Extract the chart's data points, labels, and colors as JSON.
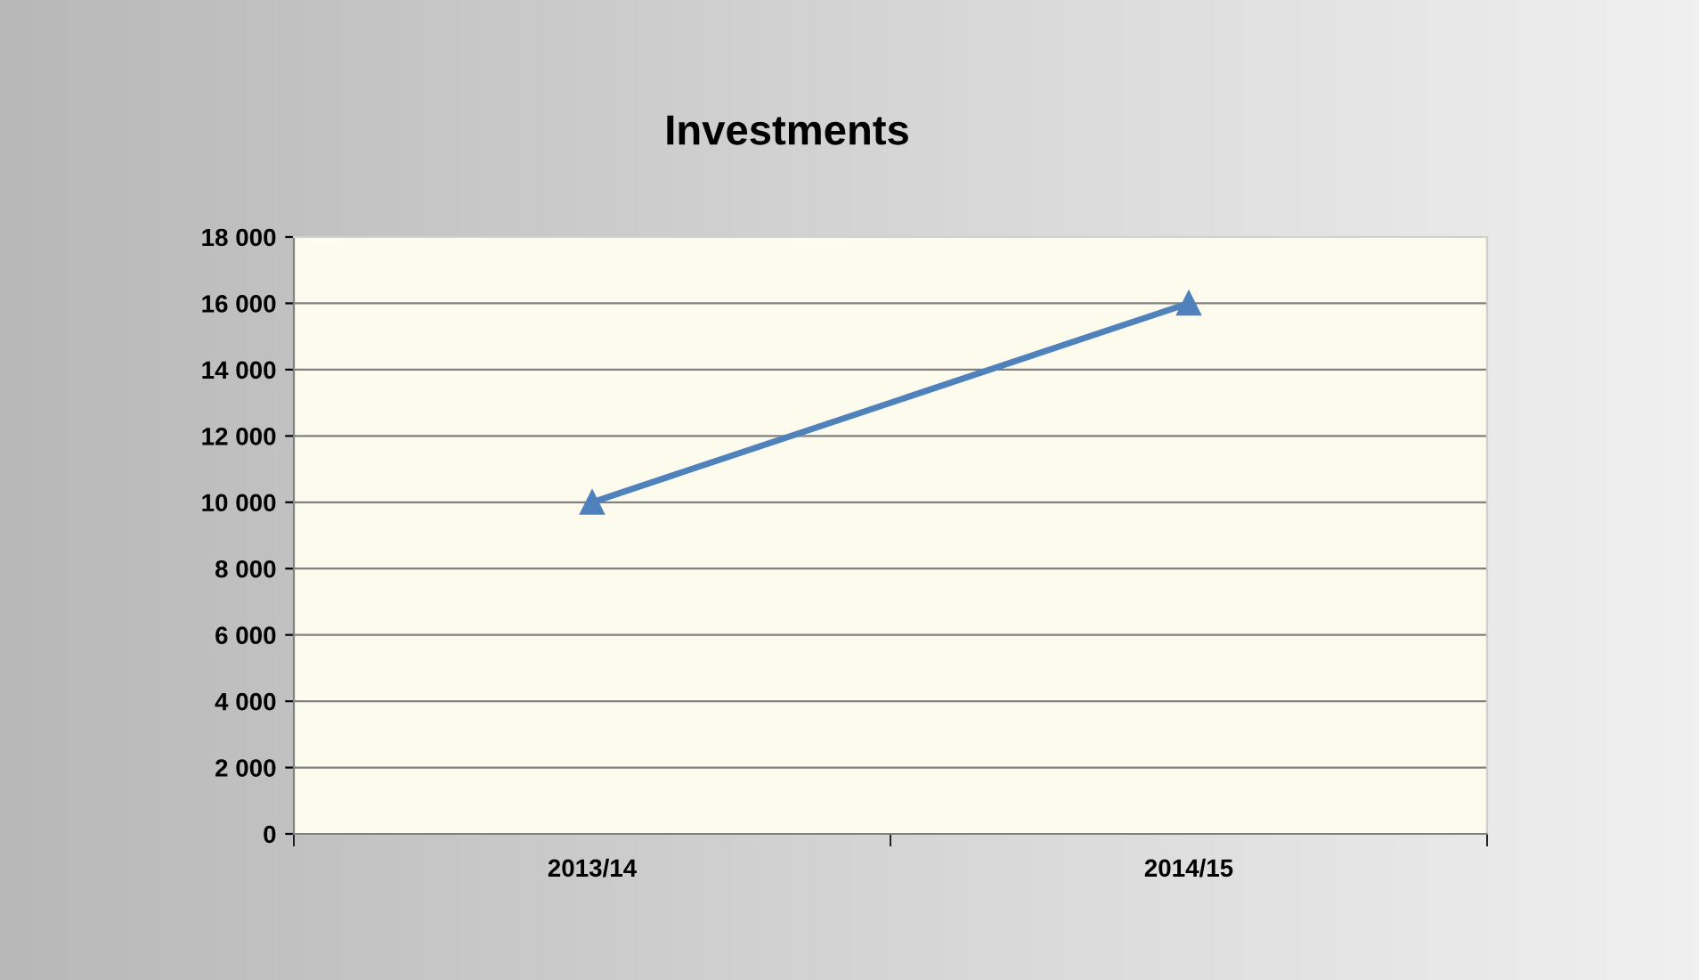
{
  "chart_data": {
    "type": "line",
    "title": "Investments",
    "categories": [
      "2013/14",
      "2014/15"
    ],
    "series": [
      {
        "color": "#4f81bd",
        "values": [
          10000,
          16000
        ]
      }
    ],
    "ylim": [
      0,
      18000
    ],
    "yticks": [
      {
        "value": 0,
        "label": "0"
      },
      {
        "value": 2000,
        "label": "2 000"
      },
      {
        "value": 4000,
        "label": "4 000"
      },
      {
        "value": 6000,
        "label": "6 000"
      },
      {
        "value": 8000,
        "label": "8 000"
      },
      {
        "value": 10000,
        "label": "10 000"
      },
      {
        "value": 12000,
        "label": "12 000"
      },
      {
        "value": 14000,
        "label": "14 000"
      },
      {
        "value": 16000,
        "label": "16 000"
      },
      {
        "value": 18000,
        "label": "18 000"
      }
    ],
    "grid": "y",
    "marker": "triangle",
    "line_style": "solid",
    "legend": false
  }
}
